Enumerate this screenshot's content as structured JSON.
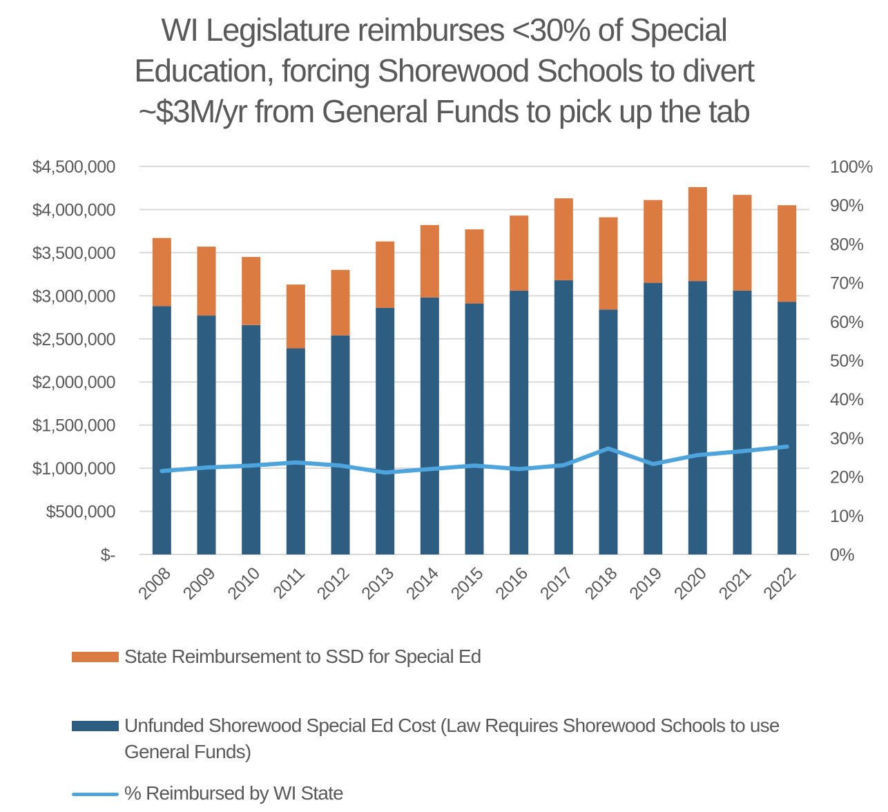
{
  "title": {
    "line1": "WI Legislature reimburses <30% of Special",
    "line2": "Education, forcing Shorewood Schools to divert",
    "line3": "~$3M/yr from General Funds to pick up the tab"
  },
  "colors": {
    "reimbursement": "#DB7B41",
    "unfunded": "#2E5D82",
    "percent_line": "#4EA4DC",
    "grid": "#D9D9D9",
    "text": "#595959"
  },
  "chart_data": {
    "type": "bar",
    "stacked": true,
    "title": "WI Legislature reimburses <30% of Special Education, forcing Shorewood Schools to divert ~$3M/yr from General Funds to pick up the tab",
    "categories": [
      "2008",
      "2009",
      "2010",
      "2011",
      "2012",
      "2013",
      "2014",
      "2015",
      "2016",
      "2017",
      "2018",
      "2019",
      "2020",
      "2021",
      "2022"
    ],
    "series": [
      {
        "name": "Unfunded Shorewood Special Ed Cost (Law Requires Shorewood Schools to use General Funds)",
        "axis": "left",
        "values": [
          2880000,
          2770000,
          2660000,
          2390000,
          2540000,
          2860000,
          2980000,
          2910000,
          3060000,
          3180000,
          2840000,
          3150000,
          3170000,
          3060000,
          2930000
        ]
      },
      {
        "name": "State Reimbursement to SSD for Special Ed",
        "axis": "left",
        "values": [
          790000,
          800000,
          790000,
          740000,
          760000,
          770000,
          840000,
          860000,
          870000,
          950000,
          1070000,
          960000,
          1090000,
          1110000,
          1120000
        ]
      },
      {
        "name": "% Reimbursed by WI State",
        "type": "line",
        "axis": "right",
        "values": [
          0.215,
          0.224,
          0.229,
          0.237,
          0.229,
          0.211,
          0.22,
          0.229,
          0.22,
          0.23,
          0.273,
          0.233,
          0.256,
          0.266,
          0.278
        ]
      }
    ],
    "y_left": {
      "min": 0,
      "max": 4500000,
      "ticks": [
        0,
        500000,
        1000000,
        1500000,
        2000000,
        2500000,
        3000000,
        3500000,
        4000000,
        4500000
      ],
      "tick_labels": [
        "$-",
        "$500,000",
        "$1,000,000",
        "$1,500,000",
        "$2,000,000",
        "$2,500,000",
        "$3,000,000",
        "$3,500,000",
        "$4,000,000",
        "$4,500,000"
      ]
    },
    "y_right": {
      "min": 0,
      "max": 1,
      "ticks": [
        0,
        0.1,
        0.2,
        0.3,
        0.4,
        0.5,
        0.6,
        0.7,
        0.8,
        0.9,
        1.0
      ],
      "tick_labels": [
        "0%",
        "10%",
        "20%",
        "30%",
        "40%",
        "50%",
        "60%",
        "70%",
        "80%",
        "90%",
        "100%"
      ]
    },
    "grid": true,
    "legend_position": "bottom"
  },
  "legend": [
    {
      "label": "State Reimbursement to SSD for Special Ed"
    },
    {
      "label": "Unfunded Shorewood Special Ed Cost (Law Requires Shorewood Schools to use General Funds)"
    },
    {
      "label": "% Reimbursed by WI State"
    }
  ]
}
